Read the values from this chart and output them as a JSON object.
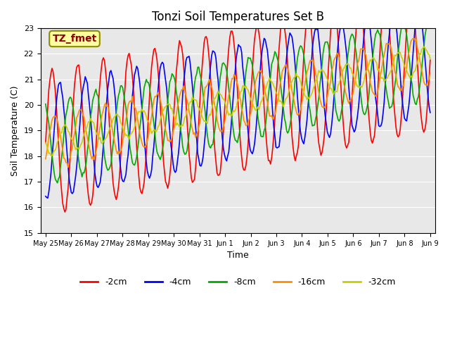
{
  "title": "Tonzi Soil Temperatures Set B",
  "xlabel": "Time",
  "ylabel": "Soil Temperature (C)",
  "ylim": [
    15.0,
    23.0
  ],
  "yticks": [
    15.0,
    16.0,
    17.0,
    18.0,
    19.0,
    20.0,
    21.0,
    22.0,
    23.0
  ],
  "annotation_text": "TZ_fmet",
  "annotation_color": "#8B0000",
  "annotation_bg": "#FFFFA0",
  "annotation_border": "#8B8B00",
  "line_colors": {
    "-2cm": "#FF0000",
    "-4cm": "#0000FF",
    "-8cm": "#00AA00",
    "-16cm": "#FF8C00",
    "-32cm": "#CCCC00"
  },
  "bg_color": "#E8E8E8",
  "n_points": 360,
  "start_day": 0,
  "end_day": 15,
  "base_temp": 18.5,
  "trend_slope": 0.22,
  "amplitudes": {
    "-2cm": 2.8,
    "-4cm": 2.2,
    "-8cm": 1.6,
    "-16cm": 1.0,
    "-32cm": 0.5
  },
  "phase_shifts": {
    "-2cm": 0.0,
    "-4cm": 0.3,
    "-8cm": 0.7,
    "-16cm": 1.1,
    "-32cm": 1.5
  },
  "xtick_days": [
    0,
    1,
    2,
    3,
    4,
    5,
    6,
    7,
    8,
    9,
    10,
    11,
    12,
    13,
    14,
    15
  ],
  "xtick_labels": [
    "May 25",
    "May 26",
    "May 27",
    "May 28",
    "May 29",
    "May 30",
    "May 31",
    "Jun 1",
    "Jun 2",
    "Jun 3",
    "Jun 4",
    "Jun 5",
    "Jun 6",
    "Jun 7",
    "Jun 8",
    "Jun 9"
  ],
  "grid_color": "#FFFFFF",
  "legend_entries": [
    "-2cm",
    "-4cm",
    "-8cm",
    "-16cm",
    "-32cm"
  ]
}
